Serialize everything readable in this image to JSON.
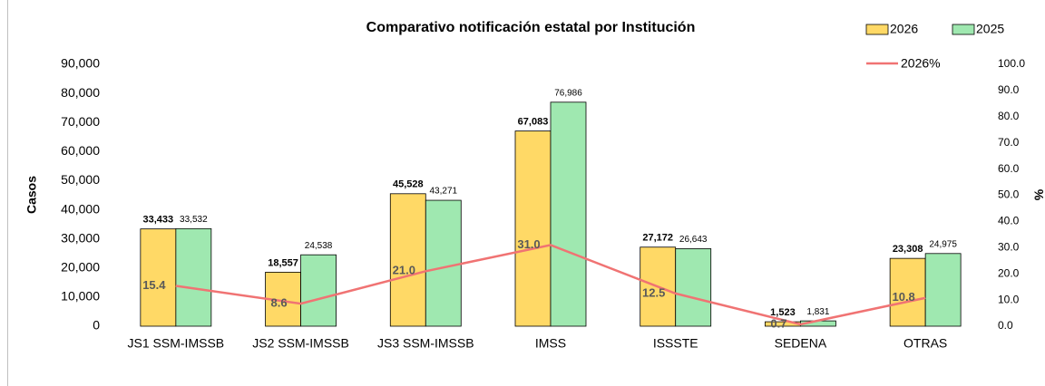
{
  "chart_data": {
    "type": "bar",
    "title": "Comparativo notificación estatal por Institución",
    "y_label": "Casos",
    "y2_label": "%",
    "categories": [
      "JS1 SSM-IMSSB",
      "JS2 SSM-IMSSB",
      "JS3 SSM-IMSSB",
      "IMSS",
      "ISSSTE",
      "SEDENA",
      "OTRAS"
    ],
    "series": [
      {
        "name": "2026",
        "color": "#ffd966",
        "values": [
          33433,
          18557,
          45528,
          67083,
          27172,
          1523,
          23308
        ],
        "value_labels": [
          "33,433",
          "18,557",
          "45,528",
          "67,083",
          "27,172",
          "1,523",
          "23,308"
        ]
      },
      {
        "name": "2025",
        "color": "#9fe8b0",
        "values": [
          33532,
          24538,
          43271,
          76986,
          26643,
          1831,
          24975
        ],
        "value_labels": [
          "33,532",
          "24,538",
          "43,271",
          "76,986",
          "26,643",
          "1,831",
          "24,975"
        ]
      },
      {
        "name": "2026%",
        "color": "#f07373",
        "type": "line",
        "axis": "y2",
        "values": [
          15.4,
          8.6,
          21.0,
          31.0,
          12.5,
          0.7,
          10.8
        ],
        "value_labels": [
          "15.4",
          "8.6",
          "21.0",
          "31.0",
          "12.5",
          "0.7",
          "10.8"
        ]
      }
    ],
    "ylim": [
      0,
      90000
    ],
    "yticks": [
      0,
      {
        "value": 10000,
        "label": "10,000"
      },
      {
        "value": 20000,
        "label": "20,000"
      },
      {
        "value": 30000,
        "label": "30,000"
      },
      {
        "value": 40000,
        "label": "40,000"
      },
      {
        "value": 50000,
        "label": "50,000"
      },
      {
        "value": 60000,
        "label": "60,000"
      },
      {
        "value": 70000,
        "label": "70,000"
      },
      {
        "value": 80000,
        "label": "80,000"
      },
      {
        "value": 90000,
        "label": "90,000"
      }
    ],
    "y2lim": [
      0,
      100
    ],
    "y2ticks": [
      {
        "value": 0,
        "label": "0.0"
      },
      {
        "value": 10,
        "label": "10.0"
      },
      {
        "value": 20,
        "label": "20.0"
      },
      {
        "value": 30,
        "label": "30.0"
      },
      {
        "value": 40,
        "label": "40.0"
      },
      {
        "value": 50,
        "label": "50.0"
      },
      {
        "value": 60,
        "label": "60.0"
      },
      {
        "value": 70,
        "label": "70.0"
      },
      {
        "value": 80,
        "label": "80.0"
      },
      {
        "value": 90,
        "label": "90.0"
      },
      {
        "value": 100,
        "label": "100.0"
      }
    ],
    "legend": "top-right"
  }
}
